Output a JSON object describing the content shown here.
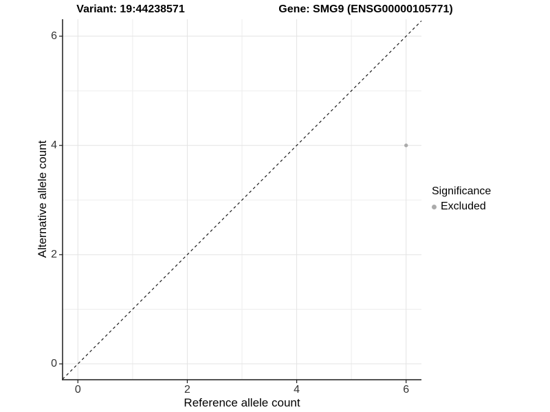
{
  "chart_data": {
    "type": "scatter",
    "title_left": "Variant: 19:44238571",
    "title_right": "Gene: SMG9 (ENSG00000105771)",
    "xlabel": "Reference allele count",
    "ylabel": "Alternative allele count",
    "xlim": [
      -0.28,
      6.28
    ],
    "ylim": [
      -0.29,
      6.31
    ],
    "x_ticks": [
      0,
      2,
      4,
      6
    ],
    "y_ticks": [
      0,
      2,
      4,
      6
    ],
    "minor_gridlines": [
      1,
      3,
      5
    ],
    "grid": "on",
    "identity_line": {
      "equation": "y = x",
      "style": "dashed",
      "color": "#1a1a1a"
    },
    "series": [
      {
        "name": "Excluded",
        "color": "#ababab",
        "points": [
          {
            "x": 6,
            "y": 4
          }
        ]
      }
    ],
    "legend": {
      "title": "Significance",
      "position": "right",
      "items": [
        {
          "label": "Excluded",
          "color": "#ababab"
        }
      ]
    }
  },
  "colors": {
    "background": "#ffffff",
    "grid_major": "#e3e3e3",
    "grid_minor": "#ededed",
    "axis_line": "#1a1a1a",
    "tick_text": "#333333"
  }
}
